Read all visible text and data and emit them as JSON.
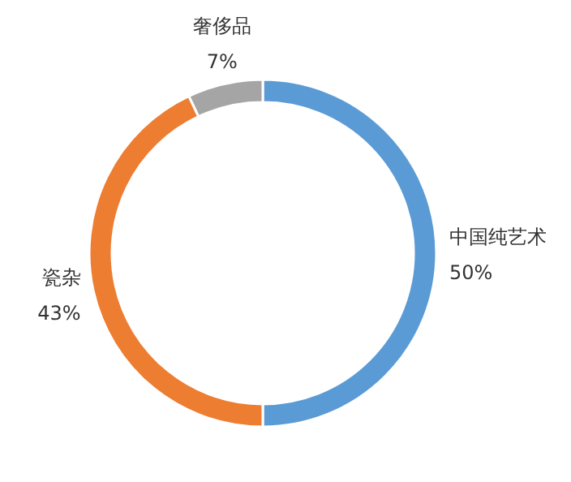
{
  "chart_data": {
    "type": "donut",
    "categories": [
      "中国纯艺术",
      "瓷杂",
      "奢侈品"
    ],
    "values": [
      50,
      43,
      7
    ],
    "value_labels": [
      "50%",
      "43%",
      "7%"
    ],
    "colors": [
      "#5b9bd5",
      "#ed7d31",
      "#a5a5a5"
    ]
  }
}
